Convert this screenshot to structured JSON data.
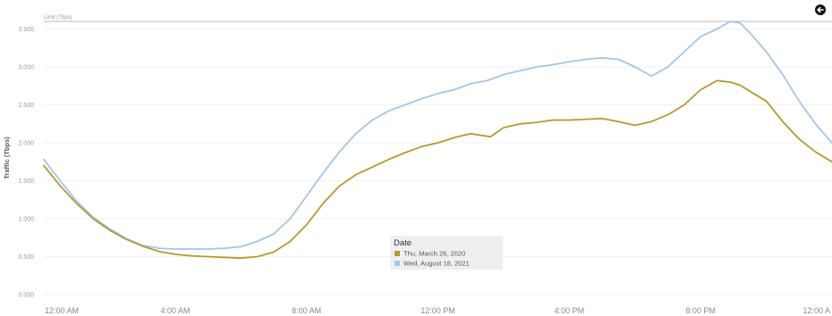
{
  "ui": {
    "back_icon": "back-arrow-icon",
    "reference_line_label": "Limit (Tbps)"
  },
  "chart_data": {
    "type": "line",
    "ylabel": "Traffic (Tbps)",
    "ylim": [
      0,
      3.6
    ],
    "yticks": [
      0,
      0.5,
      1.0,
      1.5,
      2.0,
      2.5,
      3.0,
      3.5
    ],
    "ytick_labels": [
      "0.000",
      "0.500",
      "1.000",
      "1.500",
      "2.000",
      "2.500",
      "3.000",
      "3.500"
    ],
    "xlim": [
      0,
      24
    ],
    "xticks": [
      0,
      4,
      8,
      12,
      16,
      20,
      24
    ],
    "xtick_labels": [
      "12:00 AM",
      "4:00 AM",
      "8:00 AM",
      "12:00 PM",
      "4:00 PM",
      "8:00 PM",
      "12:00 A"
    ],
    "grid": true,
    "reference_line": {
      "y": 3.6
    },
    "legend": {
      "title": "Date",
      "placement": "bottom-center"
    },
    "series": [
      {
        "name": "Thu, March 26, 2020",
        "color": "#b59a30",
        "x": [
          0,
          0.5,
          1.0,
          1.5,
          2.0,
          2.5,
          3.0,
          3.5,
          4.0,
          4.5,
          5.0,
          5.5,
          6.0,
          6.5,
          7.0,
          7.5,
          8.0,
          8.5,
          9.0,
          9.5,
          10.0,
          10.5,
          11.0,
          11.5,
          12.0,
          12.5,
          13.0,
          13.3,
          13.6,
          14.0,
          14.5,
          15.0,
          15.5,
          16.0,
          16.5,
          17.0,
          17.5,
          18.0,
          18.5,
          19.0,
          19.5,
          20.0,
          20.5,
          20.9,
          21.2,
          21.5,
          22.0,
          22.5,
          23.0,
          23.5,
          24.0
        ],
        "y": [
          1.7,
          1.43,
          1.2,
          1.0,
          0.85,
          0.73,
          0.64,
          0.57,
          0.53,
          0.51,
          0.5,
          0.49,
          0.48,
          0.5,
          0.56,
          0.7,
          0.92,
          1.2,
          1.43,
          1.58,
          1.68,
          1.78,
          1.87,
          1.95,
          2.0,
          2.07,
          2.12,
          2.1,
          2.08,
          2.2,
          2.25,
          2.27,
          2.3,
          2.3,
          2.31,
          2.32,
          2.28,
          2.23,
          2.28,
          2.37,
          2.5,
          2.7,
          2.82,
          2.8,
          2.76,
          2.68,
          2.55,
          2.28,
          2.05,
          1.88,
          1.75
        ]
      },
      {
        "name": "Wed, August 18, 2021",
        "color": "#a3c6e6",
        "x": [
          0,
          0.5,
          1.0,
          1.5,
          2.0,
          2.5,
          3.0,
          3.5,
          4.0,
          4.5,
          5.0,
          5.5,
          6.0,
          6.5,
          7.0,
          7.5,
          8.0,
          8.5,
          9.0,
          9.5,
          10.0,
          10.5,
          11.0,
          11.5,
          12.0,
          12.5,
          13.0,
          13.5,
          14.0,
          14.5,
          15.0,
          15.5,
          16.0,
          16.5,
          17.0,
          17.5,
          18.0,
          18.5,
          19.0,
          19.5,
          20.0,
          20.5,
          20.9,
          21.2,
          21.5,
          22.0,
          22.5,
          23.0,
          23.5,
          24.0
        ],
        "y": [
          1.78,
          1.5,
          1.23,
          1.02,
          0.87,
          0.74,
          0.65,
          0.61,
          0.6,
          0.6,
          0.6,
          0.61,
          0.63,
          0.7,
          0.8,
          1.0,
          1.3,
          1.6,
          1.88,
          2.12,
          2.3,
          2.42,
          2.5,
          2.58,
          2.65,
          2.7,
          2.78,
          2.82,
          2.9,
          2.95,
          3.0,
          3.03,
          3.07,
          3.1,
          3.12,
          3.1,
          3.0,
          2.88,
          3.0,
          3.2,
          3.4,
          3.5,
          3.6,
          3.58,
          3.45,
          3.2,
          2.9,
          2.55,
          2.25,
          2.0
        ]
      }
    ]
  }
}
